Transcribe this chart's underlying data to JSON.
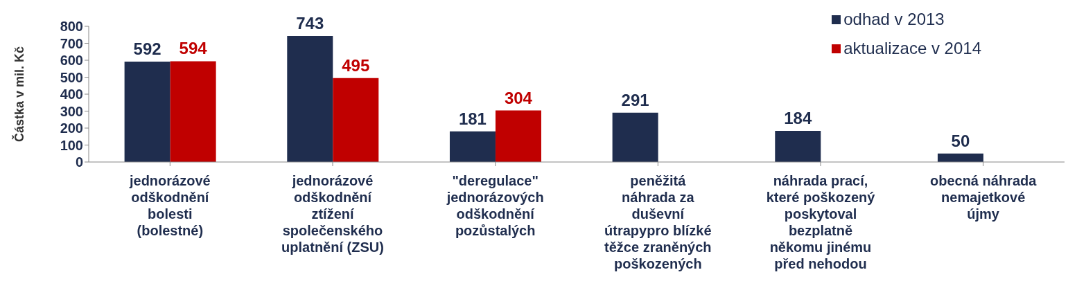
{
  "chart_data": {
    "type": "bar",
    "ylabel": "Částka v mil. Kč",
    "categories": [
      "jednorázové\nodškodnění\nbolesti\n(bolestné)",
      "jednorázové\nodškodnění\nztížení\nspolečenského\nuplatnění (ZSU)",
      "\"deregulace\"\njednorázových\nodškodnění\npozůstalých",
      "peněžitá\nnáhrada za\nduševní\nútrapypro blízké\ntěžce zraněných\npoškozených",
      "náhrada prací,\nkteré poškozený\nposkytoval\nbezplatně\nněkomu jinému\npřed nehodou",
      "obecná náhrada\nnemajetkové\nújmy"
    ],
    "series": [
      {
        "name": "odhad v 2013",
        "color": "#1f2d4e",
        "values": [
          592,
          743,
          181,
          291,
          184,
          50
        ]
      },
      {
        "name": "aktualizace v 2014",
        "color": "#c00000",
        "values": [
          594,
          495,
          304,
          null,
          null,
          null
        ]
      }
    ],
    "ylim": [
      0,
      800
    ],
    "yticks": [
      0,
      100,
      200,
      300,
      400,
      500,
      600,
      700,
      800
    ],
    "grid": false,
    "legend": "top right",
    "data_labels": true
  }
}
